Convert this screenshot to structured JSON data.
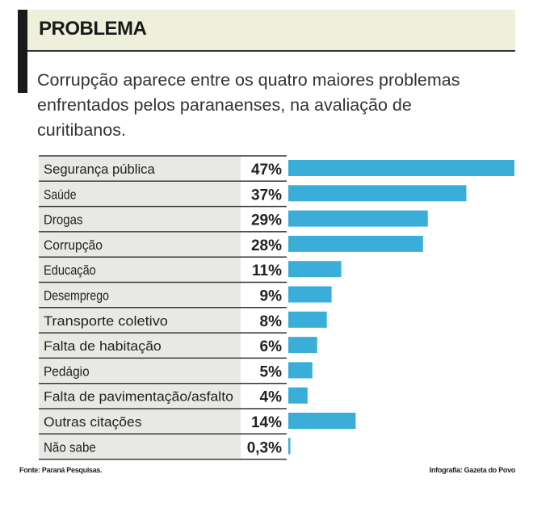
{
  "title": "PROBLEMA",
  "subtitle": "Corrupção aparece entre os quatro maiores problemas enfrentados pelos paranaenses, na avaliação de curitibanos.",
  "source": "Fonte: Paraná Pesquisas.",
  "credit": "Infografia: Gazeta do Povo",
  "colors": {
    "bar": "#3aaed8",
    "label_bg": "#e8e8e5",
    "title_bg": "#eef0dc"
  },
  "chart_data": {
    "type": "bar",
    "orientation": "horizontal",
    "categories": [
      "Segurança pública",
      "Saúde",
      "Drogas",
      "Corrupção",
      "Educação",
      "Desemprego",
      "Transporte coletivo",
      "Falta de habitação",
      "Pedágio",
      "Falta de pavimentação/asfalto",
      "Outras citações",
      "Não sabe"
    ],
    "values": [
      47,
      37,
      29,
      28,
      11,
      9,
      8,
      6,
      5,
      4,
      14,
      0.3
    ],
    "data_labels": [
      "47%",
      "37%",
      "29%",
      "28%",
      "11%",
      "9%",
      "8%",
      "6%",
      "5%",
      "4%",
      "14%",
      "0,3%"
    ],
    "unit": "%"
  }
}
